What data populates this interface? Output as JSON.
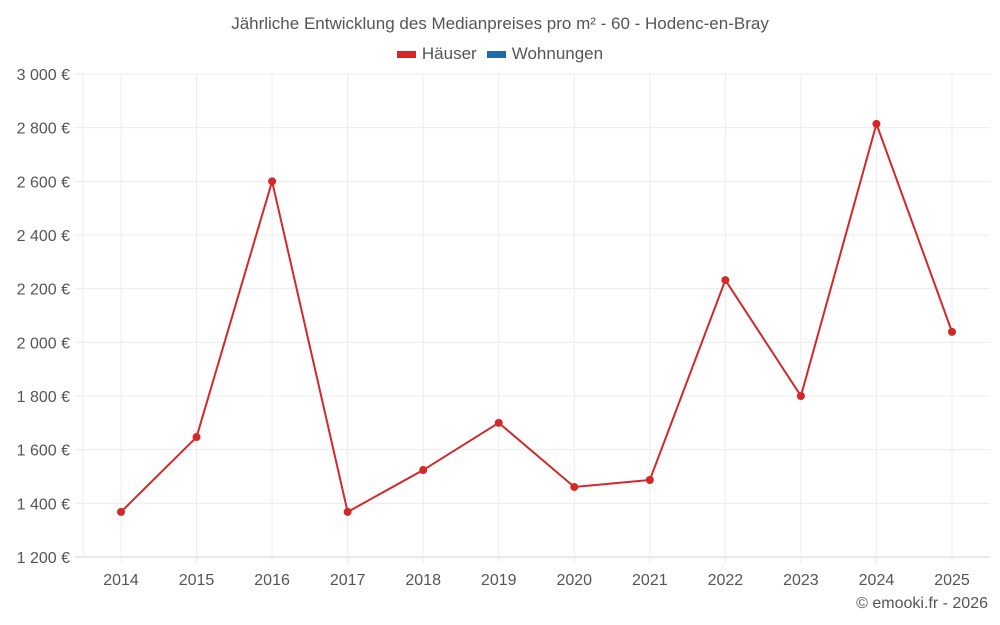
{
  "chart_data": {
    "type": "line",
    "title": "Jährliche Entwicklung des Medianpreises pro m² - 60 - Hodenc-en-Bray",
    "xlabel": "",
    "ylabel": "",
    "categories": [
      "2014",
      "2015",
      "2016",
      "2017",
      "2018",
      "2019",
      "2020",
      "2021",
      "2022",
      "2023",
      "2024",
      "2025"
    ],
    "series": [
      {
        "name": "Häuser",
        "color": "#d62728",
        "values": [
          1368,
          1647,
          2600,
          1368,
          1524,
          1700,
          1461,
          1487,
          2232,
          1800,
          2814,
          2039
        ]
      },
      {
        "name": "Wohnungen",
        "color": "#1f6aa5",
        "values": []
      }
    ],
    "ylim": [
      1200,
      3000
    ],
    "yticks": [
      1200,
      1400,
      1600,
      1800,
      2000,
      2200,
      2400,
      2600,
      2800,
      3000
    ],
    "ytick_labels": [
      "1 200 €",
      "1 400 €",
      "1 600 €",
      "1 800 €",
      "2 000 €",
      "2 200 €",
      "2 400 €",
      "2 600 €",
      "2 800 €",
      "3 000 €"
    ],
    "grid": true,
    "legend_position": "top"
  },
  "legend": {
    "items": [
      {
        "label": "Häuser",
        "color": "#d62728"
      },
      {
        "label": "Wohnungen",
        "color": "#1f6aa5"
      }
    ]
  },
  "credit": "© emooki.fr - 2026"
}
